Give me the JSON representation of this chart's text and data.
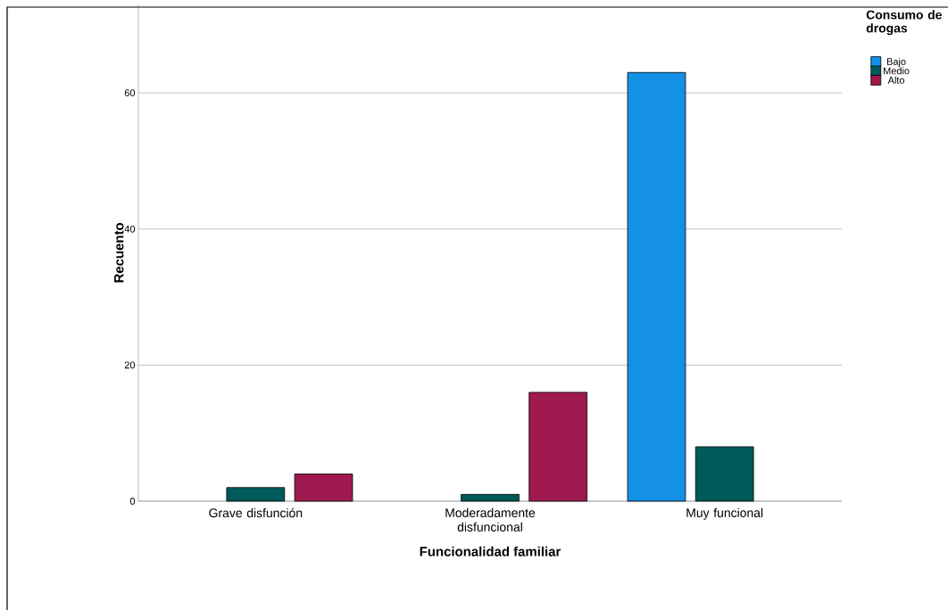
{
  "chart_data": {
    "type": "bar",
    "xlabel": "Funcionalidad familiar",
    "ylabel": "Recuento",
    "legend_title": "Consumo de drogas",
    "categories": [
      "Grave disfunción",
      "Moderadamente disfuncional",
      "Muy funcional"
    ],
    "series": [
      {
        "name": "Bajo",
        "color": "#1490e6",
        "values": [
          null,
          null,
          63
        ]
      },
      {
        "name": "Medio",
        "color": "#005a5a",
        "values": [
          2,
          1,
          8
        ]
      },
      {
        "name": "Alto",
        "color": "#9e1a4e",
        "values": [
          4,
          16,
          null
        ]
      }
    ],
    "ylim": [
      0,
      73
    ],
    "yticks": [
      0,
      20,
      40,
      60
    ],
    "grid": "y",
    "legend": "top right"
  }
}
